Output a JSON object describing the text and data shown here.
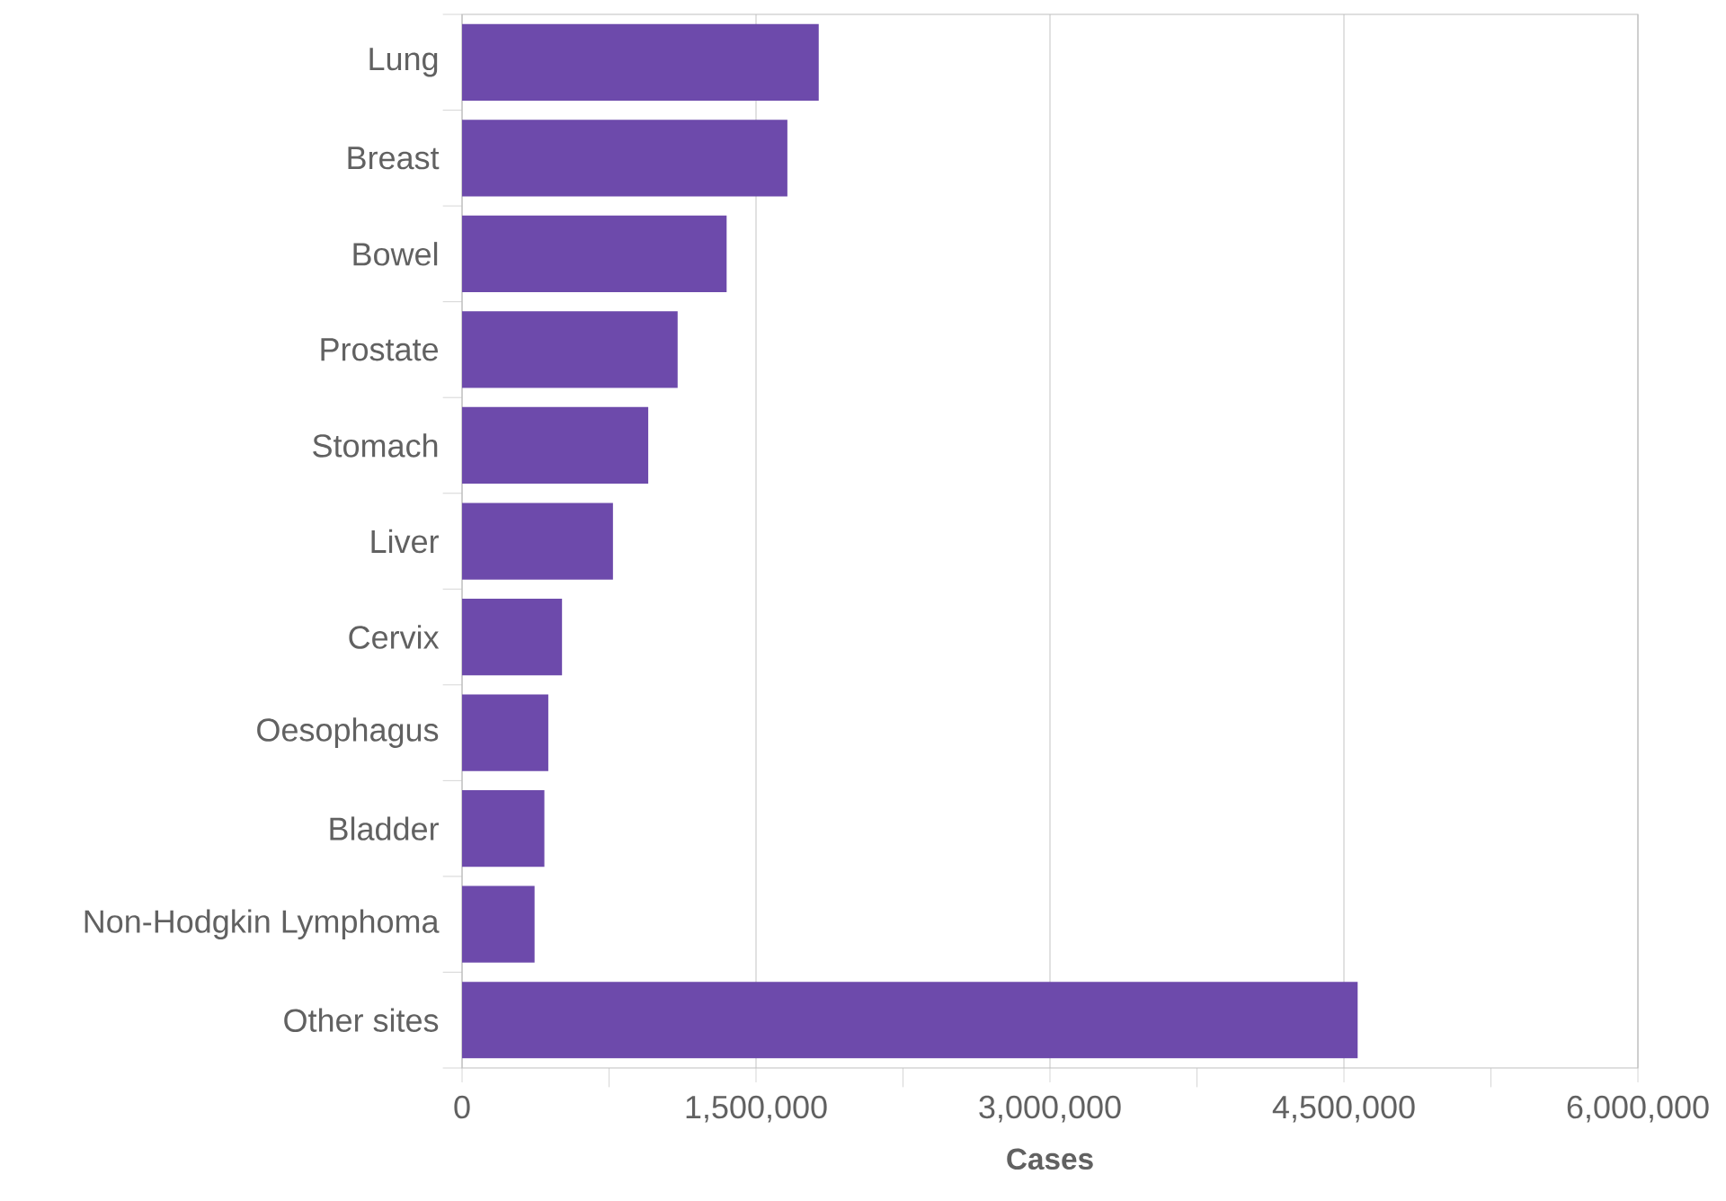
{
  "chart_data": {
    "type": "bar",
    "orientation": "horizontal",
    "xlabel": "Cases",
    "categories": [
      "Lung",
      "Breast",
      "Bowel",
      "Prostate",
      "Stomach",
      "Liver",
      "Cervix",
      "Oesophagus",
      "Bladder",
      "Non-Hodgkin Lymphoma",
      "Other sites"
    ],
    "values": [
      1820000,
      1660000,
      1350000,
      1100000,
      950000,
      770000,
      510000,
      440000,
      420000,
      370000,
      4570000
    ],
    "color": "#6d4aab",
    "xlim": [
      0,
      6000000
    ],
    "xticks": [
      {
        "value": 0,
        "label": "0"
      },
      {
        "value": 750000,
        "label": null
      },
      {
        "value": 1500000,
        "label": "1,500,000"
      },
      {
        "value": 2250000,
        "label": null
      },
      {
        "value": 3000000,
        "label": "3,000,000"
      },
      {
        "value": 3750000,
        "label": null
      },
      {
        "value": 4500000,
        "label": "4,500,000"
      },
      {
        "value": 5250000,
        "label": null
      },
      {
        "value": 6000000,
        "label": "6,000,000"
      }
    ],
    "grid": "x"
  }
}
